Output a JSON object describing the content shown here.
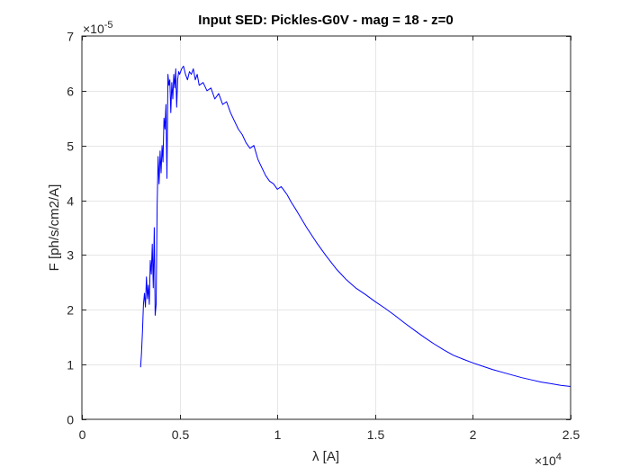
{
  "chart_data": {
    "type": "line",
    "title": "Input SED: Pickles-G0V - mag = 18 - z=0",
    "xlabel": "λ [A]",
    "ylabel": "F [ph/s/cm2/A]",
    "xlim": [
      0,
      25000
    ],
    "ylim": [
      0,
      7e-05
    ],
    "x_ticks": [
      0,
      5000,
      10000,
      15000,
      20000,
      25000
    ],
    "x_tick_labels": [
      "0",
      "0.5",
      "1",
      "1.5",
      "2",
      "2.5"
    ],
    "y_ticks": [
      0,
      1e-05,
      2e-05,
      3e-05,
      4e-05,
      5e-05,
      6e-05,
      7e-05
    ],
    "y_tick_labels": [
      "0",
      "1",
      "2",
      "3",
      "4",
      "5",
      "6",
      "7"
    ],
    "x_exponent_label": {
      "base": "×10",
      "exp": "4"
    },
    "y_exponent_label": {
      "base": "×10",
      "exp": "-5"
    },
    "grid": true,
    "line_color": "#0000ff",
    "series": [
      {
        "x": [
          3000,
          3050,
          3100,
          3150,
          3200,
          3250,
          3300,
          3350,
          3400,
          3450,
          3500,
          3550,
          3600,
          3650,
          3700,
          3750,
          3800,
          3850,
          3900,
          3950,
          4000,
          4050,
          4100,
          4150,
          4200,
          4250,
          4300,
          4350,
          4400,
          4450,
          4500,
          4550,
          4600,
          4650,
          4700,
          4750,
          4800,
          4850,
          4900,
          4950,
          5000,
          5100,
          5200,
          5300,
          5400,
          5500,
          5600,
          5700,
          5800,
          5900,
          6000,
          6200,
          6400,
          6600,
          6800,
          7000,
          7200,
          7400,
          7600,
          7800,
          8000,
          8200,
          8400,
          8600,
          8800,
          9000,
          9200,
          9400,
          9600,
          9800,
          10000,
          10200,
          10400,
          10500,
          10700,
          11000,
          11500,
          12000,
          12500,
          13000,
          13500,
          14000,
          14500,
          15000,
          15500,
          16000,
          16500,
          17000,
          17500,
          18000,
          18500,
          19000,
          19500,
          20000,
          20500,
          21000,
          21500,
          22000,
          22500,
          23000,
          23500,
          24000,
          24500,
          25000
        ],
        "y": [
          9.5e-06,
          1.2e-05,
          1.6e-05,
          2.1e-05,
          2.3e-05,
          2.05e-05,
          2.6e-05,
          2.2e-05,
          2.45e-05,
          2.1e-05,
          2.9e-05,
          2.65e-05,
          3.2e-05,
          2.4e-05,
          3.5e-05,
          1.9e-05,
          2.1e-05,
          3.9e-05,
          4.8e-05,
          4.3e-05,
          4.9e-05,
          4.5e-05,
          5e-05,
          4.7e-05,
          5.5e-05,
          5.3e-05,
          5.75e-05,
          4.4e-05,
          6.3e-05,
          6.1e-05,
          6.2e-05,
          5.6e-05,
          6.15e-05,
          5.85e-05,
          6.3e-05,
          6.05e-05,
          6.4e-05,
          5.7e-05,
          6.2e-05,
          6.35e-05,
          6.3e-05,
          6.4e-05,
          6.45e-05,
          6.3e-05,
          6.2e-05,
          6.35e-05,
          6.3e-05,
          6.4e-05,
          6.2e-05,
          6.3e-05,
          6.1e-05,
          6.15e-05,
          6e-05,
          6.05e-05,
          5.85e-05,
          5.95e-05,
          5.75e-05,
          5.8e-05,
          5.6e-05,
          5.45e-05,
          5.3e-05,
          5.2e-05,
          5.05e-05,
          4.95e-05,
          5e-05,
          4.75e-05,
          4.6e-05,
          4.45e-05,
          4.35e-05,
          4.3e-05,
          4.2e-05,
          4.25e-05,
          4.15e-05,
          4.1e-05,
          3.97e-05,
          3.8e-05,
          3.5e-05,
          3.23e-05,
          2.98e-05,
          2.75e-05,
          2.56e-05,
          2.4e-05,
          2.28e-05,
          2.15e-05,
          2.03e-05,
          1.9e-05,
          1.76e-05,
          1.63e-05,
          1.5e-05,
          1.38e-05,
          1.27e-05,
          1.17e-05,
          1.1e-05,
          1.03e-05,
          9.7e-06,
          9.1e-06,
          8.6e-06,
          8.1e-06,
          7.6e-06,
          7.2e-06,
          6.8e-06,
          6.5e-06,
          6.2e-06,
          6e-06
        ]
      }
    ]
  }
}
